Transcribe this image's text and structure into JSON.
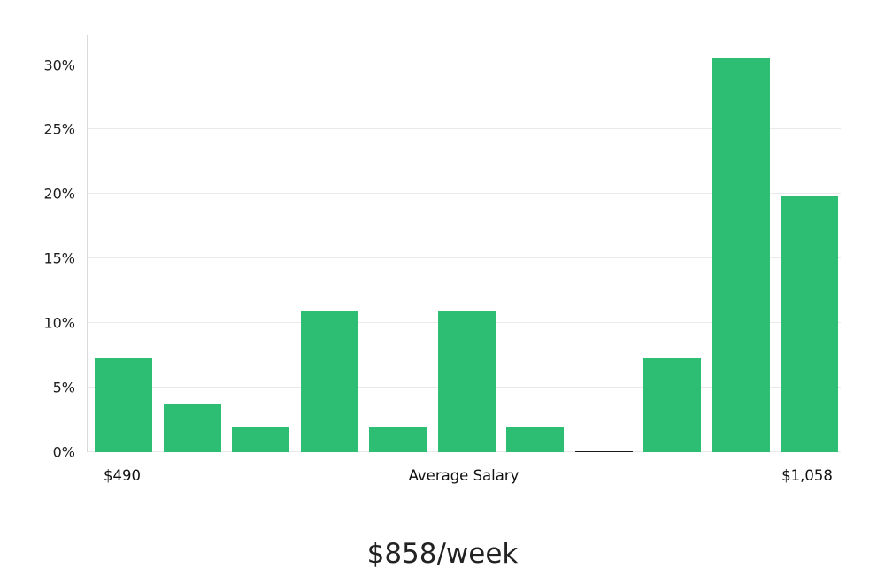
{
  "chart_data": {
    "type": "bar",
    "title": "$858/week",
    "values": [
      7.3,
      3.7,
      1.9,
      10.9,
      1.9,
      10.9,
      1.9,
      0.1,
      7.3,
      30.6,
      19.8
    ],
    "bar_styles": [
      "green",
      "green",
      "green",
      "green",
      "green",
      "green",
      "green",
      "dark",
      "green",
      "green",
      "green"
    ],
    "bar_color": "#2dbe73",
    "zero_bar_color": "#1a1a1a",
    "gridline_color": "#e9e9e9",
    "axis_line_color": "#d9d9d9",
    "y_ticks": [
      "0%",
      "5%",
      "10%",
      "15%",
      "20%",
      "25%",
      "30%"
    ],
    "y_tick_values": [
      0,
      5,
      10,
      15,
      20,
      25,
      30
    ],
    "ylim": [
      0,
      32.3
    ],
    "grid": true,
    "legend": "none",
    "xlabel": "",
    "ylabel": "",
    "x_axis_labels": {
      "left": "$490",
      "center": "Average Salary",
      "right": "$1,058"
    }
  }
}
